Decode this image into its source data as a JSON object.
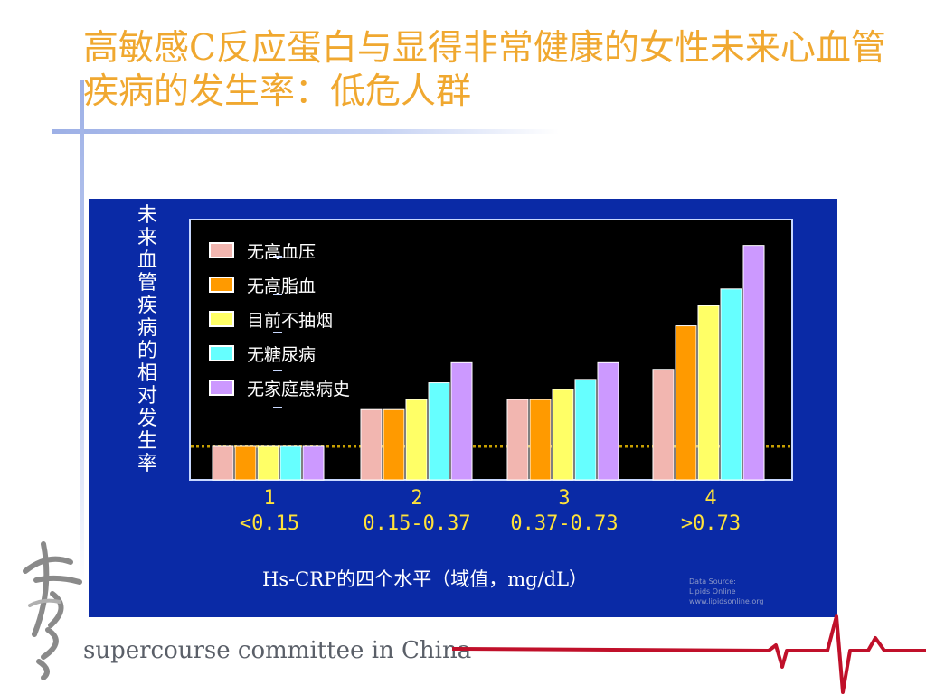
{
  "slide": {
    "title": "高敏感C反应蛋白与显得非常健康的女性未来心血管疾病的发生率：低危人群",
    "footer": "supercourse committee in China"
  },
  "chart_data": {
    "type": "bar",
    "ylabel": "未来血管疾病的相对发生率",
    "xlabel": "Hs-CRP的四个水平（域值，mg/dL）",
    "categories": [
      {
        "level": "1",
        "range": "<0.15"
      },
      {
        "level": "2",
        "range": "0.15-0.37"
      },
      {
        "level": "3",
        "range": "0.37-0.73"
      },
      {
        "level": "4",
        "range": ">0.73"
      }
    ],
    "series": [
      {
        "name": "无高血压",
        "color": "#f2b6b0",
        "values": [
          1.0,
          2.1,
          2.4,
          3.3
        ]
      },
      {
        "name": "无高脂血",
        "color": "#ff9a00",
        "values": [
          1.0,
          2.1,
          2.4,
          4.6
        ]
      },
      {
        "name": "目前不抽烟",
        "color": "#ffff66",
        "values": [
          1.0,
          2.4,
          2.7,
          5.2
        ]
      },
      {
        "name": "无糖尿病",
        "color": "#66ffff",
        "values": [
          1.0,
          2.9,
          3.0,
          5.7
        ]
      },
      {
        "name": "无家庭患病史",
        "color": "#cc99ff",
        "values": [
          1.0,
          3.5,
          3.5,
          7.0
        ]
      }
    ],
    "reference_line": 1.0,
    "ylim": [
      0,
      7.8
    ],
    "legend_position": "top-left",
    "source_text": [
      "Data Source:",
      "Lipids Online",
      "www.lipidsonline.org"
    ]
  }
}
